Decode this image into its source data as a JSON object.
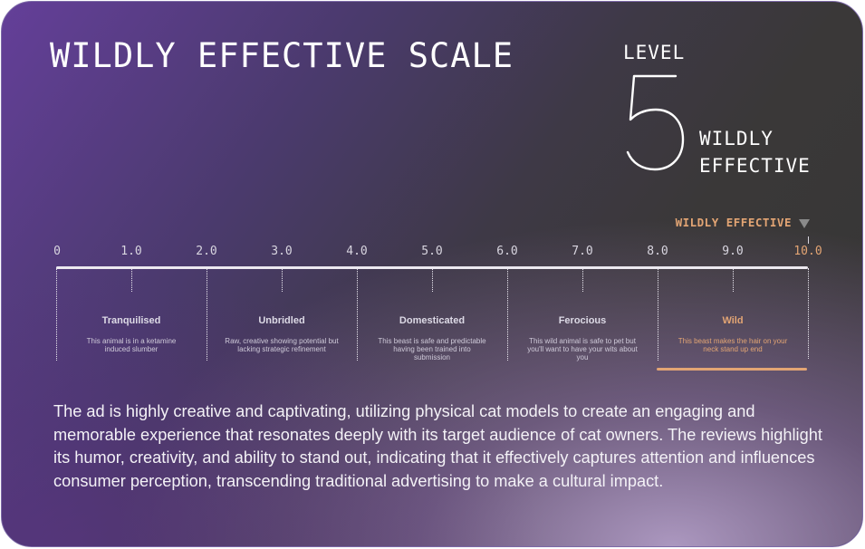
{
  "title": "WILDLY EFFECTIVE SCALE",
  "level": {
    "label": "LEVEL",
    "number": "5",
    "desc_line1": "WILDLY",
    "desc_line2": "EFFECTIVE"
  },
  "marker": {
    "text": "WILDLY EFFECTIVE",
    "value": 10.0
  },
  "scale": {
    "ticks": [
      "0",
      "1.0",
      "2.0",
      "3.0",
      "4.0",
      "5.0",
      "6.0",
      "7.0",
      "8.0",
      "9.0",
      "10.0"
    ],
    "min": 0,
    "max": 10
  },
  "categories": [
    {
      "name": "Tranquilised",
      "desc": "This animal is in a ketamine induced slumber"
    },
    {
      "name": "Unbridled",
      "desc": "Raw, creative showing potential but lacking strategic refinement"
    },
    {
      "name": "Domesticated",
      "desc": "This beast is safe and predictable having been trained into submission"
    },
    {
      "name": "Ferocious",
      "desc": "This wild animal is safe to pet but you'll want to have your wits about you"
    },
    {
      "name": "Wild",
      "desc": "This beast makes the hair on your neck stand up end"
    }
  ],
  "summary": "The ad is highly creative and captivating, utilizing physical cat models to create an engaging and memorable experience that resonates deeply with its target audience of cat owners. The reviews highlight its humor, creativity, and ability to stand out, indicating that it effectively captures attention and influences consumer perception, transcending traditional advertising to make a cultural impact.",
  "colors": {
    "accent": "#e3a574",
    "text": "#ffffff",
    "background_start": "#643f99",
    "background_end": "#363535"
  }
}
